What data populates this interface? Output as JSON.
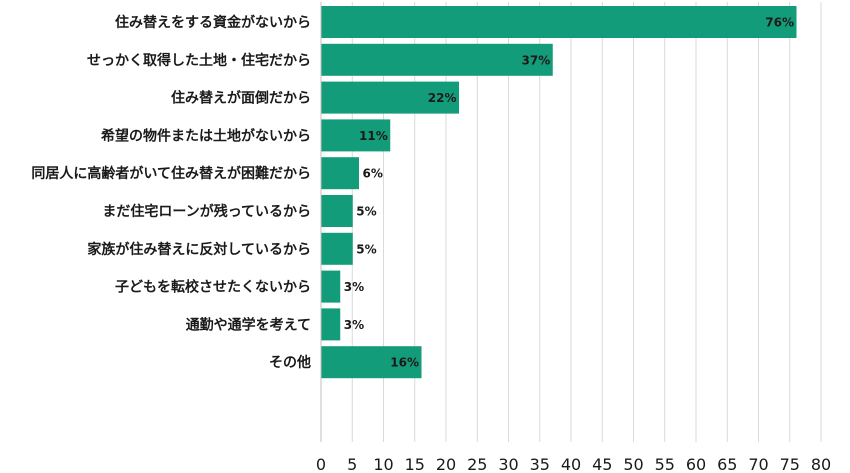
{
  "chart_data": {
    "type": "bar",
    "orientation": "horizontal",
    "categories": [
      "住み替えをする資金がないから",
      "せっかく取得した土地・住宅だから",
      "住み替えが面倒だから",
      "希望の物件または土地がないから",
      "同居人に高齢者がいて住み替えが困難だから",
      "まだ住宅ローンが残っているから",
      "家族が住み替えに反対しているから",
      "子どもを転校させたくないから",
      "通勤や通学を考えて",
      "その他"
    ],
    "values": [
      76,
      37,
      22,
      11,
      6,
      5,
      5,
      3,
      3,
      16
    ],
    "data_labels": [
      "76%",
      "37%",
      "22%",
      "11%",
      "6%",
      "5%",
      "5%",
      "3%",
      "3%",
      "16%"
    ],
    "xlim": [
      0,
      80
    ],
    "xticks": [
      "0",
      "5",
      "10",
      "15",
      "20",
      "25",
      "30",
      "35",
      "40",
      "45",
      "50",
      "55",
      "60",
      "65",
      "70",
      "75",
      "80"
    ],
    "grid": "vertical",
    "bar_color": "#139c7a",
    "title": "",
    "xlabel": "",
    "ylabel": ""
  }
}
